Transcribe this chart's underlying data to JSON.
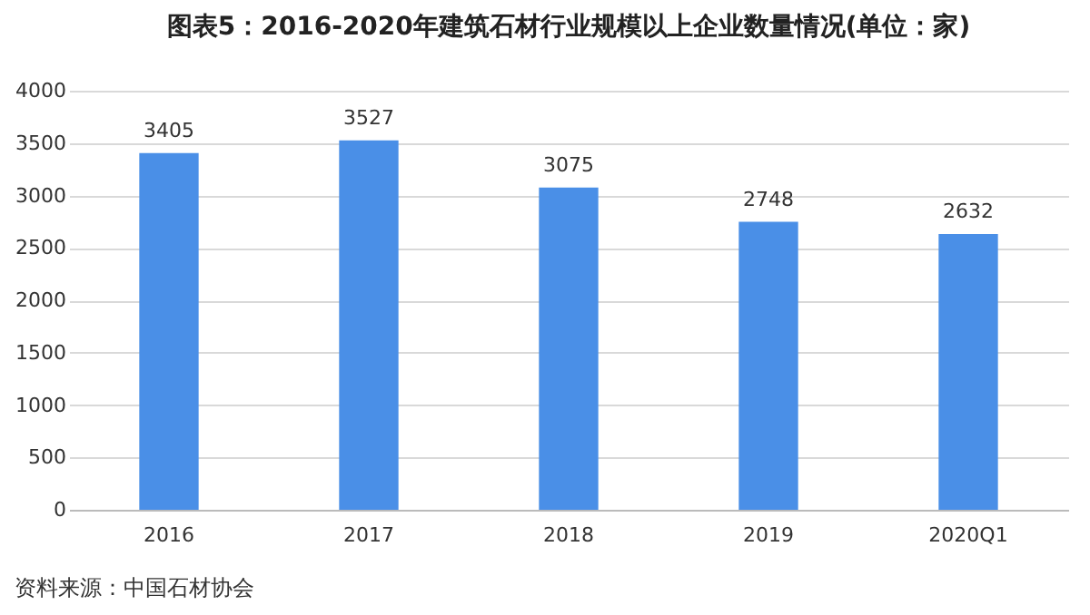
{
  "chart_data": {
    "type": "bar",
    "title": "图表5：2016-2020年建筑石材行业规模以上企业数量情况(单位：家)",
    "categories": [
      "2016",
      "2017",
      "2018",
      "2019",
      "2020Q1"
    ],
    "values": [
      3405,
      3527,
      3075,
      2748,
      2632
    ],
    "color": "#4a8fe7",
    "ylim": [
      0,
      4000
    ],
    "yticks": [
      0,
      500,
      1000,
      1500,
      2000,
      2500,
      3000,
      3500,
      4000
    ],
    "grid": "y",
    "data_labels": true,
    "annotations": [
      "资料来源：中国石材协会"
    ]
  }
}
